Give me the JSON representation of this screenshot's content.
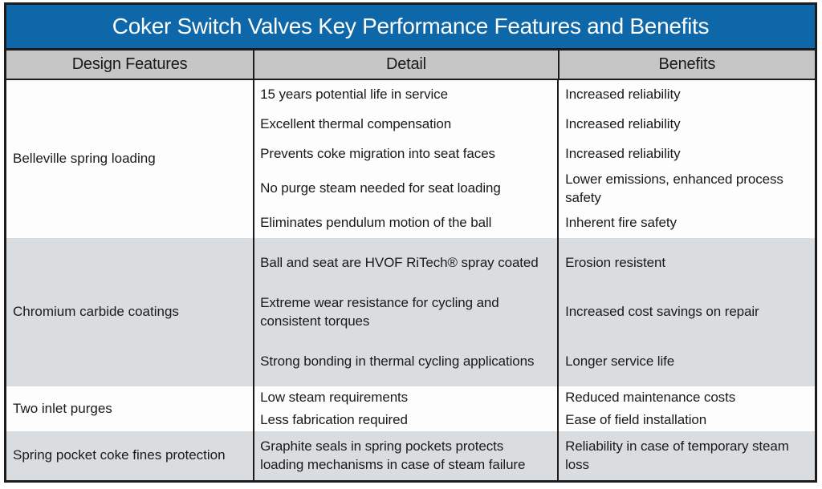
{
  "colors": {
    "title_bg": "#0d67a8",
    "title_text": "#ffffff",
    "header_bg": "#c5c6c5",
    "row_bg": "#fdfdfd",
    "shaded_row_bg": "#dadddf",
    "border": "#1c1c1c"
  },
  "table": {
    "title": "Coker Switch Valves Key Performance Features and Benefits",
    "columns": {
      "design_features": "Design Features",
      "detail": "Detail",
      "benefits": "Benefits"
    },
    "groups": [
      {
        "feature": "Belleville spring loading",
        "rows": [
          {
            "detail": "15 years potential life in service",
            "benefit": "Increased reliability"
          },
          {
            "detail": "Excellent thermal compensation",
            "benefit": "Increased reliability"
          },
          {
            "detail": "Prevents coke migration into seat faces",
            "benefit": "Increased reliability"
          },
          {
            "detail": "No purge steam needed for seat loading",
            "benefit": "Lower emissions, enhanced process safety"
          },
          {
            "detail": "Eliminates pendulum motion of the ball",
            "benefit": "Inherent fire safety"
          }
        ]
      },
      {
        "feature": "Chromium carbide coatings",
        "rows": [
          {
            "detail": "Ball and seat are HVOF RiTech® spray coated",
            "benefit": "Erosion resistent"
          },
          {
            "detail": "Extreme wear resistance for cycling and consistent torques",
            "benefit": "Increased cost savings on repair"
          },
          {
            "detail": "Strong bonding in thermal cycling applications",
            "benefit": "Longer service life"
          }
        ]
      },
      {
        "feature": "Two inlet purges",
        "rows": [
          {
            "detail": "Low steam requirements",
            "benefit": "Reduced maintenance costs"
          },
          {
            "detail": "Less fabrication required",
            "benefit": "Ease of field installation"
          }
        ]
      },
      {
        "feature": "Spring pocket coke fines protection",
        "rows": [
          {
            "detail": "Graphite seals in spring pockets protects loading mechanisms in case of steam failure",
            "benefit": "Reliability in case of temporary steam loss"
          }
        ]
      }
    ]
  }
}
